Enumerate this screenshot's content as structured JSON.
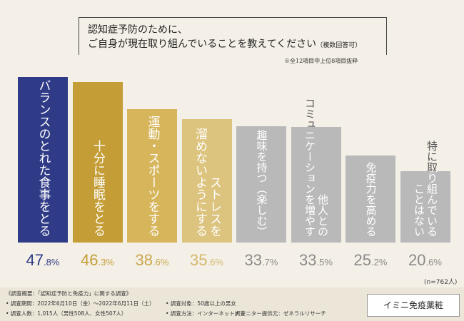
{
  "chart_data": {
    "type": "bar",
    "title": [
      "認知症予防のために、",
      "ご自身が現在取り組んでいることを教えてください"
    ],
    "title_note": "（複数回答可）",
    "note": "※全12項目中上位8項目抜粋",
    "categories": [
      [
        "バランスのとれた食事をとる"
      ],
      [
        "十分に睡眠をとる"
      ],
      [
        "運動・スポーツをする"
      ],
      [
        "ストレスを",
        "溜めないようにする"
      ],
      [
        "趣味を持つ（楽しむ）"
      ],
      [
        "他人との",
        "コミュニケーションを増やす"
      ],
      [
        "免疫力を高める"
      ],
      [
        "特に取り組んでいる",
        "ことはない"
      ]
    ],
    "values": [
      47.8,
      46.3,
      38.6,
      35.6,
      33.7,
      33.5,
      25.2,
      20.6
    ],
    "value_labels": [
      "47.8%",
      "46.3%",
      "38.6%",
      "35.6%",
      "33.7%",
      "33.5%",
      "25.2%",
      "20.6%"
    ],
    "colors": [
      "#2f3b86",
      "#c49d36",
      "#d6b55b",
      "#dcc47f",
      "#b9b9b9",
      "#b9b9b9",
      "#b9b9b9",
      "#b9b9b9"
    ],
    "label_colors": [
      "#2f3b86",
      "#c49d36",
      "#c9a64b",
      "#d3b86a",
      "#8a8a8a",
      "#8a8a8a",
      "#8a8a8a",
      "#8a8a8a"
    ],
    "sample": "(n=762人)"
  },
  "footer": {
    "heading": "《調査概要：「認知症予防と免疫力」に関する調査》",
    "items": [
      "• 調査期間：2022年6月10日（金）～2022年6月11日（土）",
      "• 調査対象：50歳以上の男女",
      "• 調査人数：1,015人（男性508人、女性507人）",
      "• 調査方法：インターネット調査",
      "• モニター提供元：ゼネラルリサーチ"
    ]
  },
  "logo": "イミニ免疫薬粧"
}
